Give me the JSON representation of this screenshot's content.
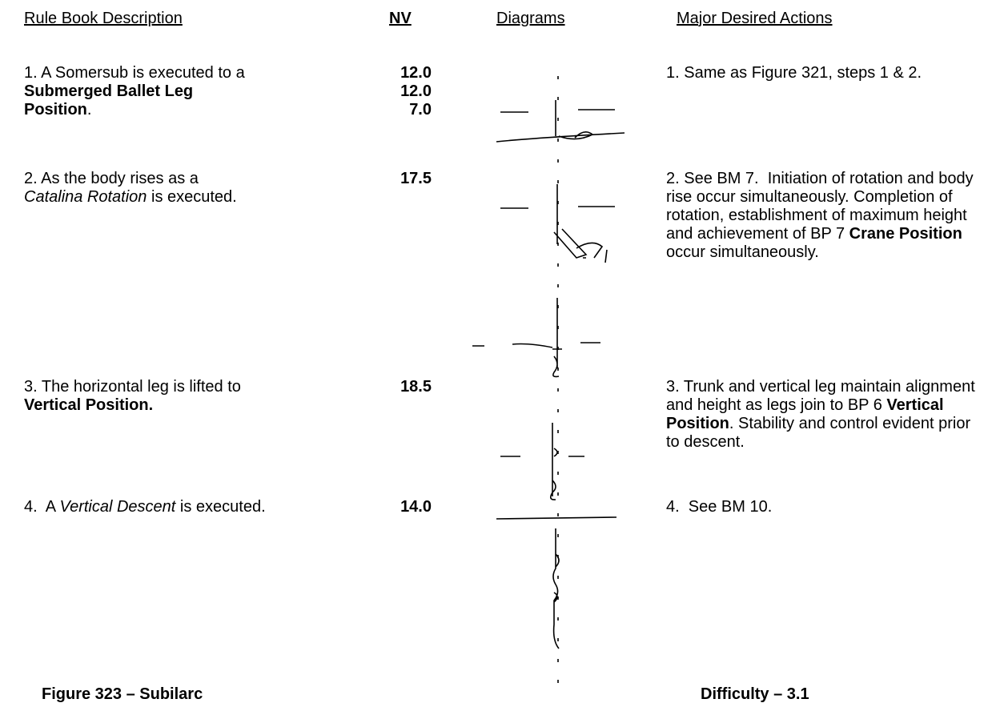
{
  "header": {
    "description": "Rule Book Description",
    "nv": "NV",
    "diagrams": "Diagrams",
    "actions": "Major Desired Actions"
  },
  "rows": [
    {
      "description": [
        "1. A Somersub is executed to a ",
        "Submerged Ballet Leg Position",
        "."
      ],
      "nv": [
        "12.0",
        "12.0",
        "7.0"
      ],
      "actions": [
        "1. Same as Figure 321, steps 1 & 2."
      ]
    },
    {
      "description": [
        "2. As the body rises as a ",
        "Catalina Rotation",
        " is executed."
      ],
      "nv": [
        "17.5"
      ],
      "actions": [
        "2. See BM 7.  Initiation of rotation and body rise occur simultaneously. Completion of rotation, establishment of maximum height and achievement of BP 7 ",
        "Crane Position",
        " occur simultaneously."
      ]
    },
    {
      "description": [
        "3. The horizontal leg is lifted to ",
        "Vertical Position."
      ],
      "nv": [
        "18.5"
      ],
      "actions": [
        "3. Trunk and vertical leg maintain alignment and height as legs join to BP 6 ",
        "Vertical Position",
        ". Stability and control evident prior to descent."
      ]
    },
    {
      "description": [
        "4.  A ",
        "Vertical Descent",
        " is executed."
      ],
      "nv": [
        "14.0"
      ],
      "actions": [
        "4.  See BM 10."
      ]
    }
  ],
  "footer": {
    "figure": "Figure 323 – Subilarc",
    "difficulty": "Difficulty – 3.1"
  }
}
